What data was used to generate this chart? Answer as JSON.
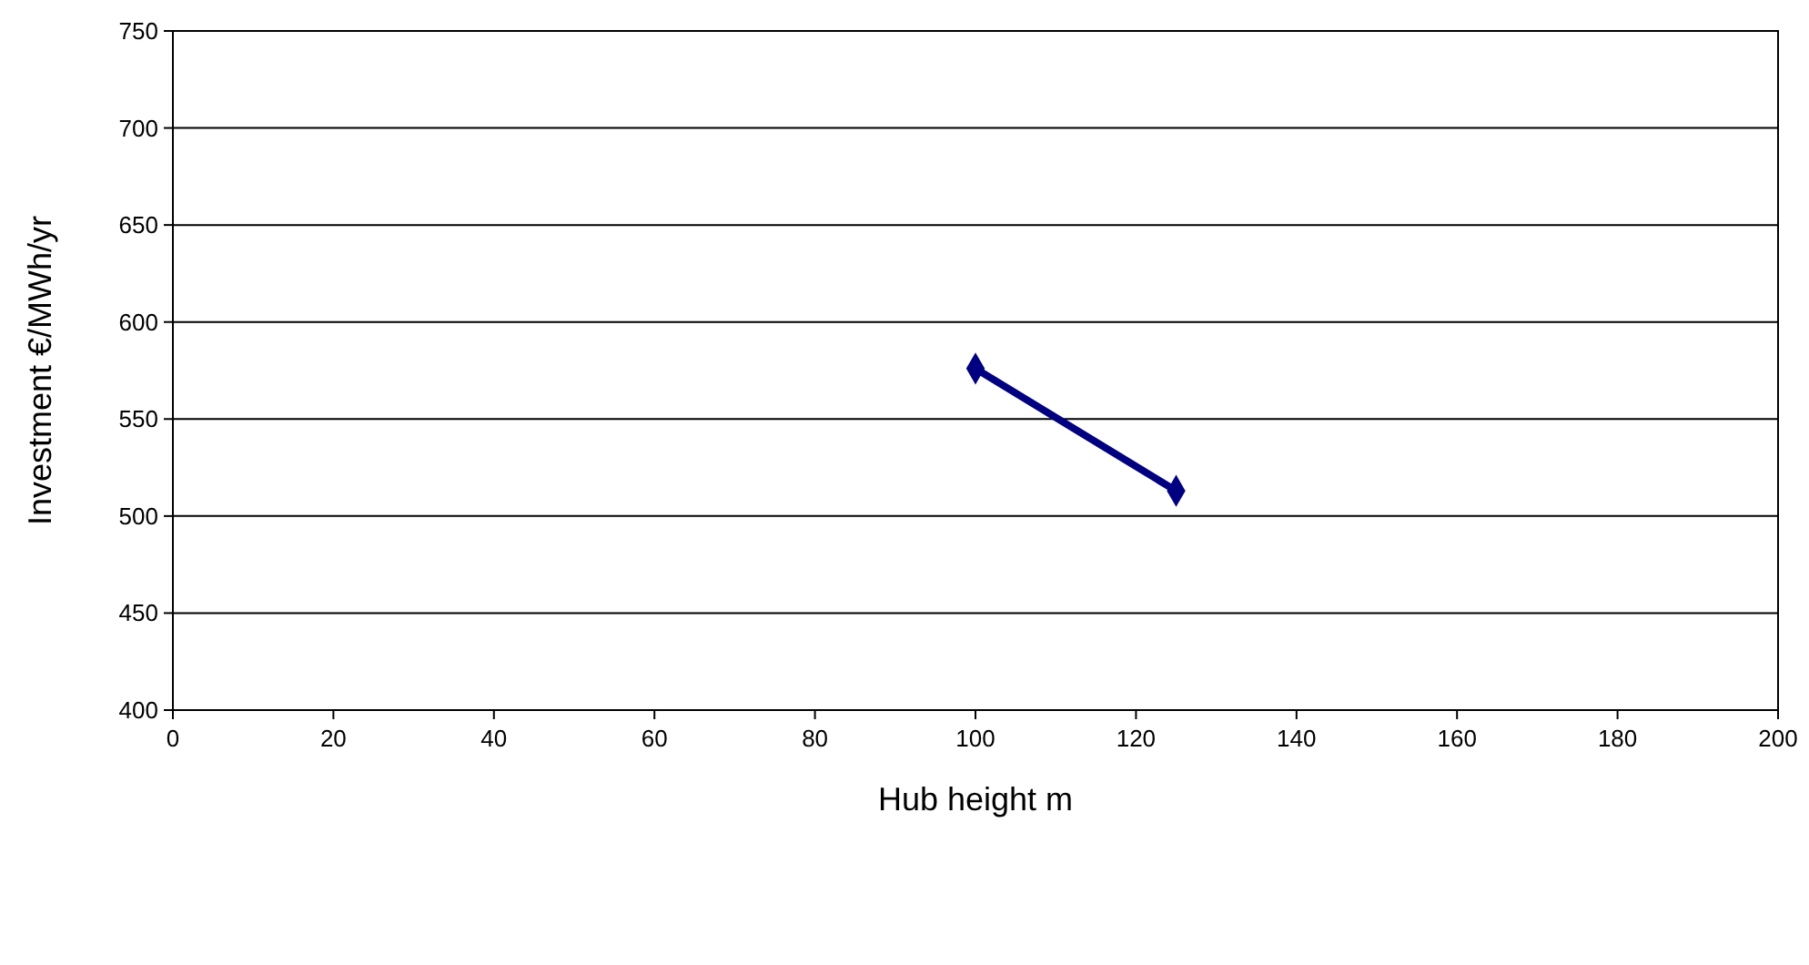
{
  "chart_data": {
    "type": "line",
    "xlabel": "Hub height m",
    "ylabel": "Investment €/MWh/yr",
    "xlim": [
      0,
      200
    ],
    "xticks": [
      0,
      20,
      40,
      60,
      80,
      100,
      120,
      140,
      160,
      180,
      200
    ],
    "ylim": [
      400,
      750
    ],
    "yticks": [
      400,
      450,
      500,
      550,
      600,
      650,
      700,
      750
    ],
    "grid": "y",
    "marker": "diamond",
    "line_style": "solid",
    "series": [
      {
        "color": "#000080",
        "x": [
          100,
          125
        ],
        "values": [
          576,
          513
        ]
      }
    ]
  }
}
